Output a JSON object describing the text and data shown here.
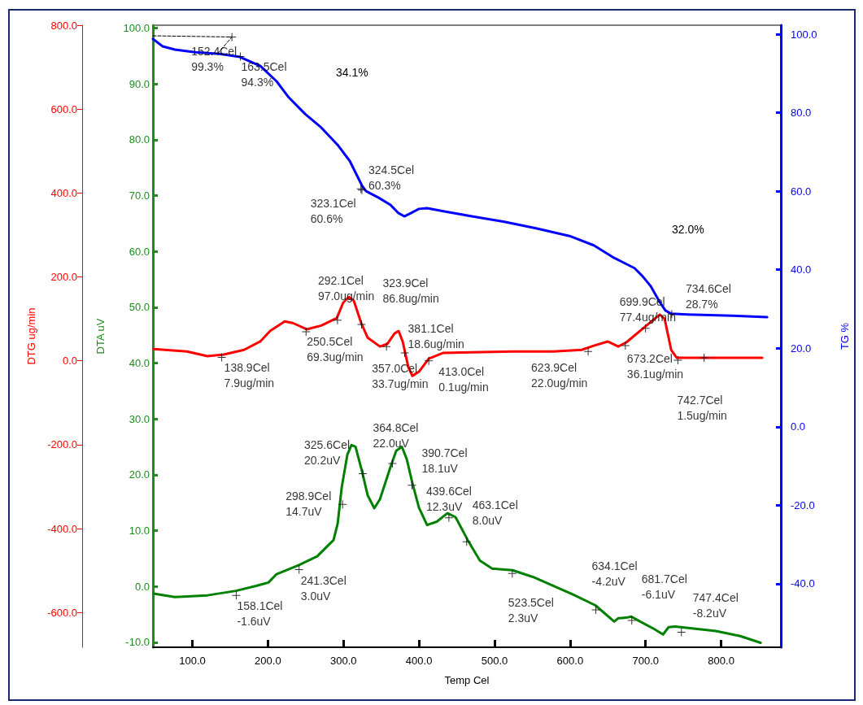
{
  "chart_data": {
    "type": "line",
    "xlabel": "Temp Cel",
    "ylabel": "DTA uV",
    "y2label": "TG %",
    "y3label": "DTG ug/min",
    "xlim": [
      47.8,
      879
    ],
    "xticks": [
      {
        "value": 100,
        "label": "100.0"
      },
      {
        "value": 200,
        "label": "200.0"
      },
      {
        "value": 300,
        "label": "300.0"
      },
      {
        "value": 400,
        "label": "400.0"
      },
      {
        "value": 500,
        "label": "500.0"
      },
      {
        "value": 600,
        "label": "600.0"
      },
      {
        "value": 700,
        "label": "700.0"
      },
      {
        "value": 800,
        "label": "800.0"
      }
    ],
    "ylim": [
      -10.9,
      100.5
    ],
    "yticks": [
      {
        "value": -10,
        "label": "-10.0"
      },
      {
        "value": 0,
        "label": "0.0"
      },
      {
        "value": 10,
        "label": "10.0"
      },
      {
        "value": 20,
        "label": "20.0"
      },
      {
        "value": 30,
        "label": "30.0"
      },
      {
        "value": 40,
        "label": "40.0"
      },
      {
        "value": 50,
        "label": "50.0"
      },
      {
        "value": 60,
        "label": "60.0"
      },
      {
        "value": 70,
        "label": "70.0"
      },
      {
        "value": 80,
        "label": "80.0"
      },
      {
        "value": 90,
        "label": "90.0"
      },
      {
        "value": 100,
        "label": "100.0"
      }
    ],
    "y2lim": [
      -56.2,
      102.3
    ],
    "y2ticks": [
      {
        "value": -40,
        "label": "-40.0"
      },
      {
        "value": -20,
        "label": "-20.0"
      },
      {
        "value": 0,
        "label": "0.0"
      },
      {
        "value": 20,
        "label": "20.0"
      },
      {
        "value": 40,
        "label": "40.0"
      },
      {
        "value": 60,
        "label": "60.0"
      },
      {
        "value": 80,
        "label": "80.0"
      },
      {
        "value": 100,
        "label": "100.0"
      }
    ],
    "y3lim": [
      -683,
      800
    ],
    "y3ticks": [
      {
        "value": -600,
        "label": "-600.0"
      },
      {
        "value": -400,
        "label": "-400.0"
      },
      {
        "value": -200,
        "label": "-200.0"
      },
      {
        "value": 0,
        "label": "0.0"
      },
      {
        "value": 200,
        "label": "200.0"
      },
      {
        "value": 400,
        "label": "400.0"
      },
      {
        "value": 600,
        "label": "600.0"
      },
      {
        "value": 800,
        "label": "800.0"
      }
    ],
    "annotations": [
      "34.1%",
      "32.0%"
    ],
    "series": [
      {
        "axis": "y2",
        "color": "#0000ff",
        "marker": "none",
        "x": [
          47.8,
          60.7,
          76.9,
          103.8,
          136.1,
          163.0,
          190.0,
          211.5,
          227.6,
          249.2,
          270.7,
          292.3,
          308.4,
          319.2,
          324.6,
          330.0,
          346.1,
          362.3,
          373.0,
          380.6,
          389.2,
          399.9,
          410.7,
          432.3,
          469.9,
          513.0,
          556.1,
          599.2,
          631.5,
          658.4,
          685.3,
          696.1,
          706.8,
          717.6,
          726.2,
          733.8,
          755.3,
          814.5,
          860.8
        ],
        "values": [
          98.8,
          96.9,
          96.1,
          95.4,
          95.0,
          94.2,
          91.9,
          88.0,
          83.9,
          79.7,
          76.2,
          71.8,
          67.7,
          63.5,
          61.4,
          60.0,
          58.4,
          56.5,
          54.4,
          53.6,
          54.4,
          55.5,
          55.7,
          54.9,
          53.6,
          52.2,
          50.5,
          48.6,
          46.2,
          43.0,
          40.4,
          38.3,
          35.8,
          32.1,
          29.6,
          28.8,
          28.6,
          28.3,
          27.9
        ]
      },
      {
        "axis": "y3",
        "color": "#ff0000",
        "marker": "none",
        "x": [
          48.9,
          93.0,
          119.9,
          141.5,
          168.4,
          189.9,
          202.9,
          222.3,
          233.0,
          251.3,
          270.7,
          291.2,
          299.8,
          307.3,
          313.8,
          323.5,
          332.1,
          348.3,
          358.0,
          367.6,
          373.0,
          378.4,
          386.0,
          391.3,
          400.0,
          412.9,
          432.3,
          469.9,
          523.8,
          577.6,
          615.3,
          631.5,
          649.8,
          663.8,
          674.5,
          700.4,
          718.7,
          725.2,
          733.8,
          741.3,
          793.0,
          854.4
        ],
        "values": [
          28,
          22,
          11,
          15,
          26,
          46,
          71,
          94,
          90,
          75,
          84,
          102,
          139,
          152,
          143,
          90,
          55,
          34,
          40,
          65,
          71,
          46,
          -16,
          -36,
          -26,
          5,
          19,
          20,
          22,
          22,
          26,
          36,
          46,
          34,
          44,
          83,
          110,
          100,
          26,
          7,
          7,
          7
        ]
      },
      {
        "color": "#008000",
        "marker": "none",
        "x": [
          48.9,
          76.9,
          119.9,
          157.6,
          184.5,
          195.3,
          200.7,
          211.5,
          240.6,
          265.3,
          286.9,
          292.3,
          297.7,
          305.2,
          310.6,
          316.0,
          324.6,
          332.1,
          340.8,
          348.3,
          362.3,
          369.9,
          377.4,
          383.8,
          391.3,
          400.0,
          410.7,
          423.6,
          437.6,
          448.4,
          464.5,
          480.7,
          496.9,
          523.8,
          550.7,
          604.5,
          633.6,
          658.4,
          663.8,
          674.5,
          681.0,
          692.8,
          712.2,
          723.0,
          730.5,
          739.1,
          792.9,
          825.3,
          852.2
        ],
        "values": [
          -1.3,
          -1.9,
          -1.6,
          -0.8,
          0.1,
          0.5,
          0.7,
          2.2,
          3.8,
          5.4,
          8.3,
          11.2,
          17.7,
          23.6,
          25.3,
          25.0,
          20.6,
          16.3,
          14.0,
          15.6,
          21.4,
          24.3,
          25.0,
          22.8,
          18.5,
          14.1,
          11.0,
          11.6,
          13.1,
          12.4,
          8.3,
          4.6,
          3.2,
          2.9,
          1.7,
          -1.5,
          -3.4,
          -6.3,
          -5.7,
          -5.6,
          -5.4,
          -6.3,
          -7.7,
          -8.6,
          -7.3,
          -7.2,
          -8.0,
          -8.9,
          -10.1
        ]
      },
      {
        "axis": "y2",
        "color": "#000000",
        "marker": "none",
        "line_style": "dashed",
        "x": [
          47.8,
          152.4,
          134.0
        ],
        "values": [
          99.6,
          99.3,
          95.2
        ]
      },
      {
        "type": "scatter",
        "axis": "y2",
        "color": "#000000",
        "marker": "cross",
        "x": [
          152.4,
          163.5,
          324.5,
          323.1,
          734.6
        ],
        "values": [
          99.3,
          94.3,
          60.3,
          60.6,
          28.7
        ],
        "value_labels": [
          "152.4Cel\n99.3%",
          "163.5Cel\n94.3%",
          "324.5Cel\n60.3%",
          "323.1Cel\n60.6%",
          "734.6Cel\n28.7%"
        ]
      },
      {
        "type": "scatter",
        "axis": "y3",
        "color": "#000000",
        "marker": "cross",
        "x": [
          138.9,
          250.5,
          292.1,
          323.9,
          357.0,
          381.1,
          413.0,
          623.9,
          673.2,
          699.9,
          742.7,
          777.4
        ],
        "values": [
          7.9,
          69.3,
          97.0,
          86.8,
          33.7,
          18.6,
          0.1,
          22.0,
          36.1,
          77.4,
          1.5,
          7
        ],
        "value_labels": [
          "138.9Cel\n7.9ug/min",
          "250.5Cel\n69.3ug/min",
          "292.1Cel\n97.0ug/min",
          "323.9Cel\n86.8ug/min",
          "357.0Cel\n33.7ug/min",
          "381.1Cel\n18.6ug/min",
          "413.0Cel\n0.1ug/min",
          "623.9Cel\n22.0ug/min",
          "673.2Cel\n36.1ug/min",
          "699.9Cel\n77.4ug/min",
          "742.7Cel\n1.5ug/min",
          null
        ]
      },
      {
        "type": "scatter",
        "color": "#000000",
        "marker": "cross",
        "x": [
          158.1,
          241.3,
          298.9,
          325.6,
          364.8,
          390.7,
          439.6,
          463.1,
          523.5,
          634.1,
          681.7,
          747.4
        ],
        "values": [
          -1.6,
          3.0,
          14.7,
          20.2,
          22.0,
          18.1,
          12.3,
          8.0,
          2.3,
          -4.2,
          -6.1,
          -8.2
        ],
        "value_labels": [
          "158.1Cel\n-1.6uV",
          "241.3Cel\n3.0uV",
          "298.9Cel\n14.7uV",
          "325.6Cel\n20.2uV",
          "364.8Cel\n22.0uV",
          "390.7Cel\n18.1uV",
          "439.6Cel\n12.3uV",
          "463.1Cel\n8.0uV",
          "523.5Cel\n2.3uV",
          "634.1Cel\n-4.2uV",
          "681.7Cel\n-6.1uV",
          "747.4Cel\n-8.2uV"
        ]
      }
    ]
  }
}
